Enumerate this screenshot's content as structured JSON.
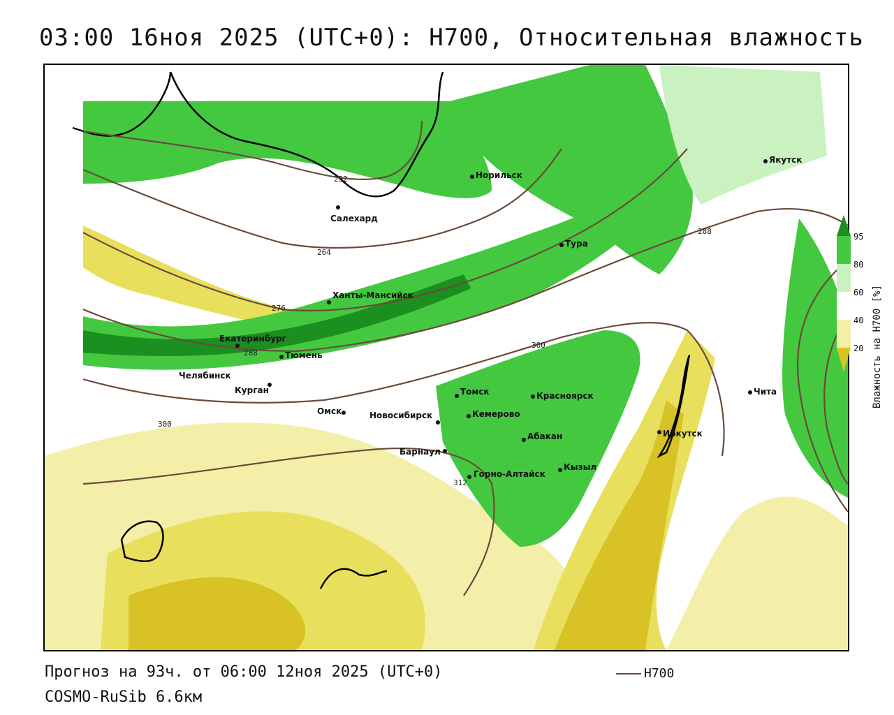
{
  "title": "03:00 16ноя 2025 (UTC+0): H700, Относительная влажность",
  "footer": {
    "forecast": "Прогноз на 93ч. от 06:00 12ноя 2025 (UTC+0)",
    "model": "COSMO-RuSib 6.6км"
  },
  "legend": {
    "contour_label": "H700",
    "contour_color": "#6b4a3a"
  },
  "colorbar": {
    "title": "Влажность на H700 [%]",
    "ticks": [
      "95",
      "80",
      "60",
      "40",
      "20"
    ],
    "colors": {
      "very_dry": "#d8c225",
      "dry": "#e8df5c",
      "mod_dry": "#f3efa8",
      "neutral": "#ffffff",
      "mod_moist": "#c9f2c0",
      "moist": "#43c83f",
      "very_moist": "#1b8f1f"
    }
  },
  "contour_labels": [
    "252",
    "264",
    "276",
    "288",
    "300",
    "312",
    "288",
    "300"
  ],
  "cities": [
    {
      "name": "Якутск"
    },
    {
      "name": "Норильск"
    },
    {
      "name": "Салехард"
    },
    {
      "name": "Тура"
    },
    {
      "name": "Ханты-Мансийск"
    },
    {
      "name": "Екатеринбург"
    },
    {
      "name": "Тюмень"
    },
    {
      "name": "Челябинск"
    },
    {
      "name": "Курган"
    },
    {
      "name": "Омск"
    },
    {
      "name": "Томск"
    },
    {
      "name": "Новосибирск"
    },
    {
      "name": "Кемерово"
    },
    {
      "name": "Красноярск"
    },
    {
      "name": "Абакан"
    },
    {
      "name": "Барнаул"
    },
    {
      "name": "Кызыл"
    },
    {
      "name": "Горно-Алтайск"
    },
    {
      "name": "Иркутск"
    },
    {
      "name": "Чита"
    }
  ]
}
